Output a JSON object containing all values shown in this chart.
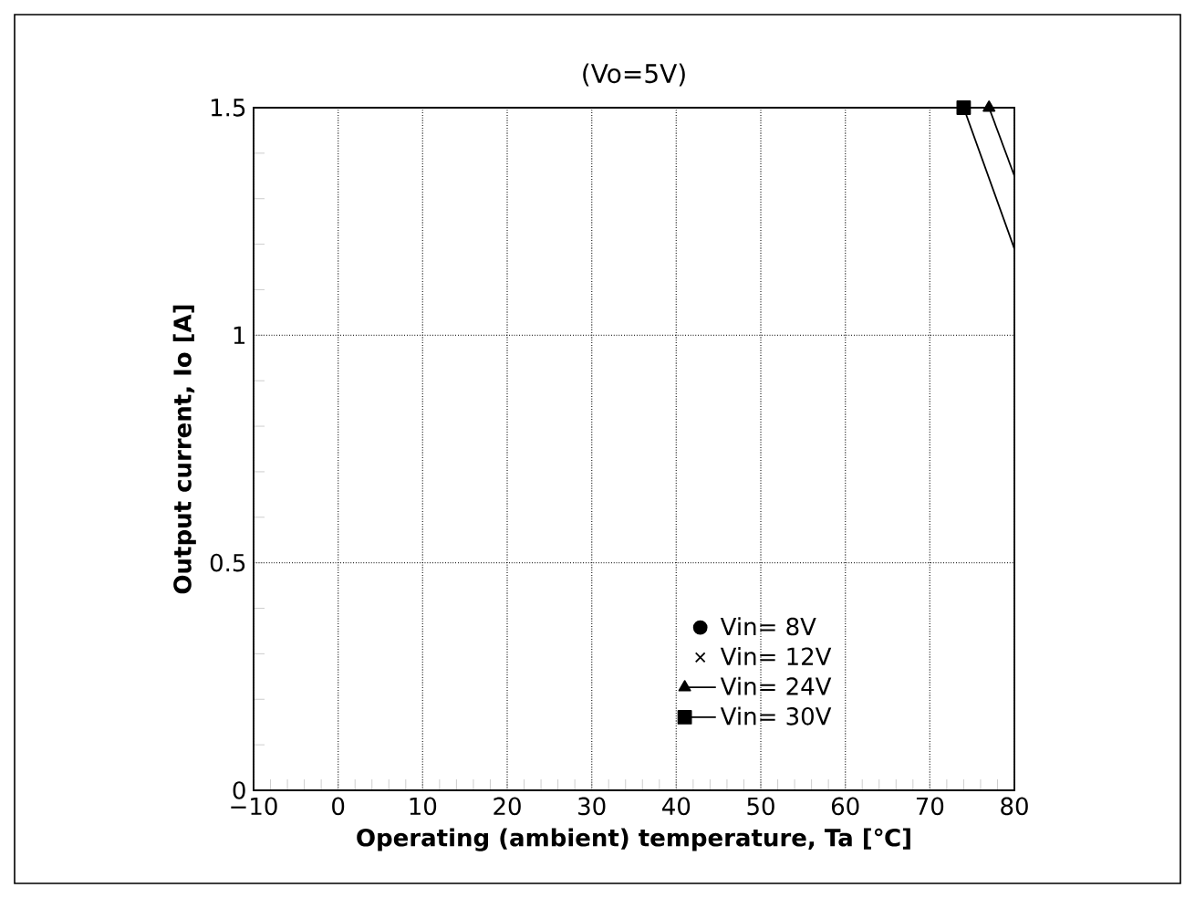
{
  "chart_data": {
    "type": "line",
    "title": "(Vo=5V)",
    "xlabel": "Operating (ambient) temperature, Ta [℃]",
    "ylabel": "Output current, **Io** [A]",
    "xlim": [
      -10,
      80
    ],
    "xticks": [
      {
        "value": -10,
        "label": "−10"
      },
      0,
      10,
      20,
      30,
      40,
      50,
      60,
      70,
      80
    ],
    "ylim": [
      0,
      1.5
    ],
    "yticks": [
      0,
      0.5,
      1,
      1.5
    ],
    "grid": true,
    "legend": "bottom right",
    "line_style": "solid",
    "series": [
      {
        "name": "Vin= 8V",
        "color": "#000000",
        "marker": "circle"
      },
      {
        "name": "Vin= 12V",
        "color": "#000000",
        "marker": "cross"
      },
      {
        "name": "Vin= 24V",
        "color": "#000000",
        "marker": "triangle",
        "x": [
          77,
          80
        ],
        "values": [
          1.5,
          1.35
        ]
      },
      {
        "name": "Vin= 30V",
        "color": "#000000",
        "marker": "square",
        "x": [
          74,
          80
        ],
        "values": [
          1.5,
          1.19
        ]
      }
    ]
  }
}
